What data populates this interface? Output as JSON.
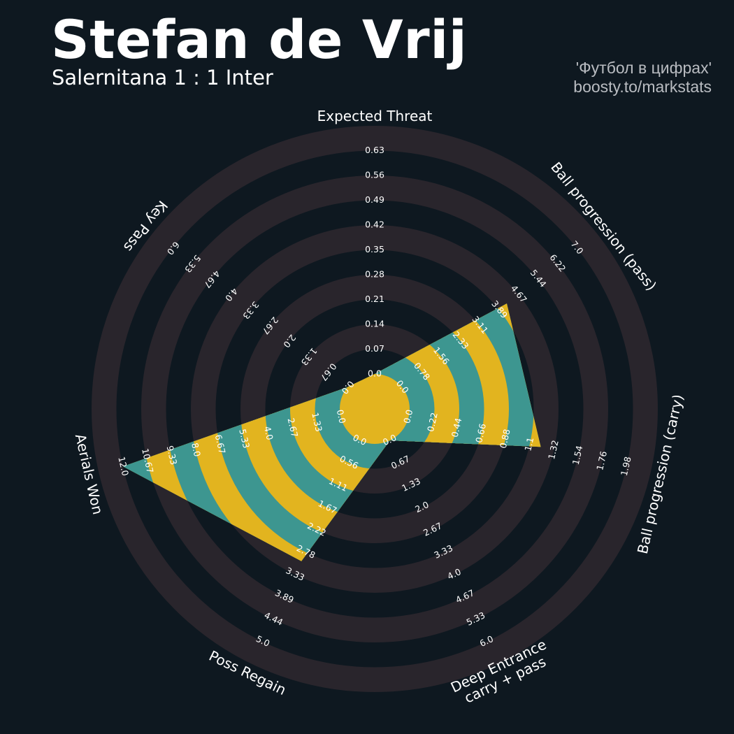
{
  "header": {
    "title": "Stefan de Vrij",
    "subtitle": "Salernitana 1 : 1 Inter",
    "credit_line1": "'Футбол в цифрах'",
    "credit_line2": "boosty.to/markstats"
  },
  "colors": {
    "background": "#0e1820",
    "ring": "#29252c",
    "fill_teal": "#3d9690",
    "fill_gold": "#e2b41f"
  },
  "chart_data": {
    "type": "radar",
    "title": "Stefan de Vrij",
    "params": [
      {
        "label": [
          "Expected Threat"
        ],
        "ticks": [
          "0.0",
          "0.07",
          "0.14",
          "0.21",
          "0.28",
          "0.35",
          "0.42",
          "0.49",
          "0.56",
          "0.63"
        ],
        "value": 0.0
      },
      {
        "label": [
          "Ball progression (pass)"
        ],
        "ticks": [
          "0.0",
          "0.78",
          "1.56",
          "2.33",
          "3.11",
          "3.89",
          "4.67",
          "5.44",
          "6.22",
          "7.0"
        ],
        "value": 4.2
      },
      {
        "label": [
          "Ball progression (carry)"
        ],
        "ticks": [
          "0.0",
          "0.22",
          "0.44",
          "0.66",
          "0.88",
          "1.1",
          "1.32",
          "1.54",
          "1.76",
          "1.98"
        ],
        "value": 1.2
      },
      {
        "label": [
          "Deep Entrance",
          "carry + pass"
        ],
        "ticks": [
          "0.0",
          "0.67",
          "1.33",
          "2.0",
          "2.67",
          "3.33",
          "4.0",
          "4.67",
          "5.33",
          "6.0"
        ],
        "value": 0.0
      },
      {
        "label": [
          "Poss Regain"
        ],
        "ticks": [
          "0.0",
          "0.56",
          "1.11",
          "1.67",
          "2.22",
          "2.78",
          "3.33",
          "3.89",
          "4.44",
          "5.0"
        ],
        "value": 3.0
      },
      {
        "label": [
          "Aerials Won"
        ],
        "ticks": [
          "0.0",
          "1.33",
          "2.67",
          "4.0",
          "5.33",
          "6.67",
          "8.0",
          "9.33",
          "10.67",
          "12.0"
        ],
        "value": 12.0
      },
      {
        "label": [
          "Key Pass"
        ],
        "ticks": [
          "0.0",
          "0.67",
          "1.33",
          "2.0",
          "2.67",
          "3.33",
          "4.0",
          "4.67",
          "5.33",
          "6.0"
        ],
        "value": 0.0
      }
    ]
  }
}
